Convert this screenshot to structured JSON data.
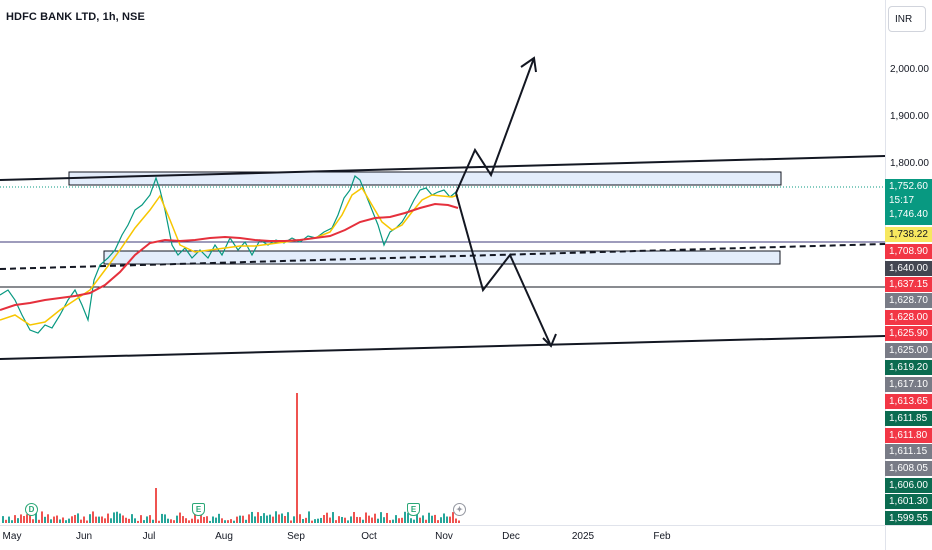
{
  "symbol": {
    "title": "HDFC BANK LTD, 1h, NSE"
  },
  "currency": "INR",
  "price_scale": {
    "ticks": [
      "2,000.00",
      "1,900.00",
      "1,800.00"
    ],
    "badges": [
      {
        "text": "1,752.60\n15:17\n1,746.40",
        "style": "teal"
      },
      {
        "text": "1,738.22",
        "style": "yellow"
      },
      {
        "text": "1,708.90",
        "style": "red"
      },
      {
        "text": "1,640.00",
        "style": "dark"
      },
      {
        "text": "1,637.15",
        "style": "red"
      },
      {
        "text": "1,628.70",
        "style": "gray"
      },
      {
        "text": "1,628.00",
        "style": "red"
      },
      {
        "text": "1,625.90",
        "style": "red"
      },
      {
        "text": "1,625.00",
        "style": "gray"
      },
      {
        "text": "1,619.20",
        "style": "darkgreen"
      },
      {
        "text": "1,617.10",
        "style": "gray"
      },
      {
        "text": "1,613.65",
        "style": "red"
      },
      {
        "text": "1,611.85",
        "style": "darkgreen"
      },
      {
        "text": "1,611.80",
        "style": "red"
      },
      {
        "text": "1,611.15",
        "style": "gray"
      },
      {
        "text": "1,608.05",
        "style": "gray"
      },
      {
        "text": "1,606.00",
        "style": "darkgreen"
      },
      {
        "text": "1,601.30",
        "style": "darkgreen"
      },
      {
        "text": "1,599.55",
        "style": "darkgreen"
      }
    ]
  },
  "time_axis": {
    "labels": [
      "May",
      "Jun",
      "Jul",
      "Aug",
      "Sep",
      "Oct",
      "Nov",
      "Dec",
      "2025",
      "Feb"
    ]
  },
  "events": {
    "dividend": "D",
    "earnings": "E"
  },
  "colors": {
    "price_line": "#089981",
    "ma_yellow": "#f7c600",
    "ma_red": "#e5303c",
    "zone_fill": "#e3edfb",
    "horizontal_line": "#3d3a7a",
    "volume_up": "#26a69a",
    "volume_down": "#ef5350"
  }
}
